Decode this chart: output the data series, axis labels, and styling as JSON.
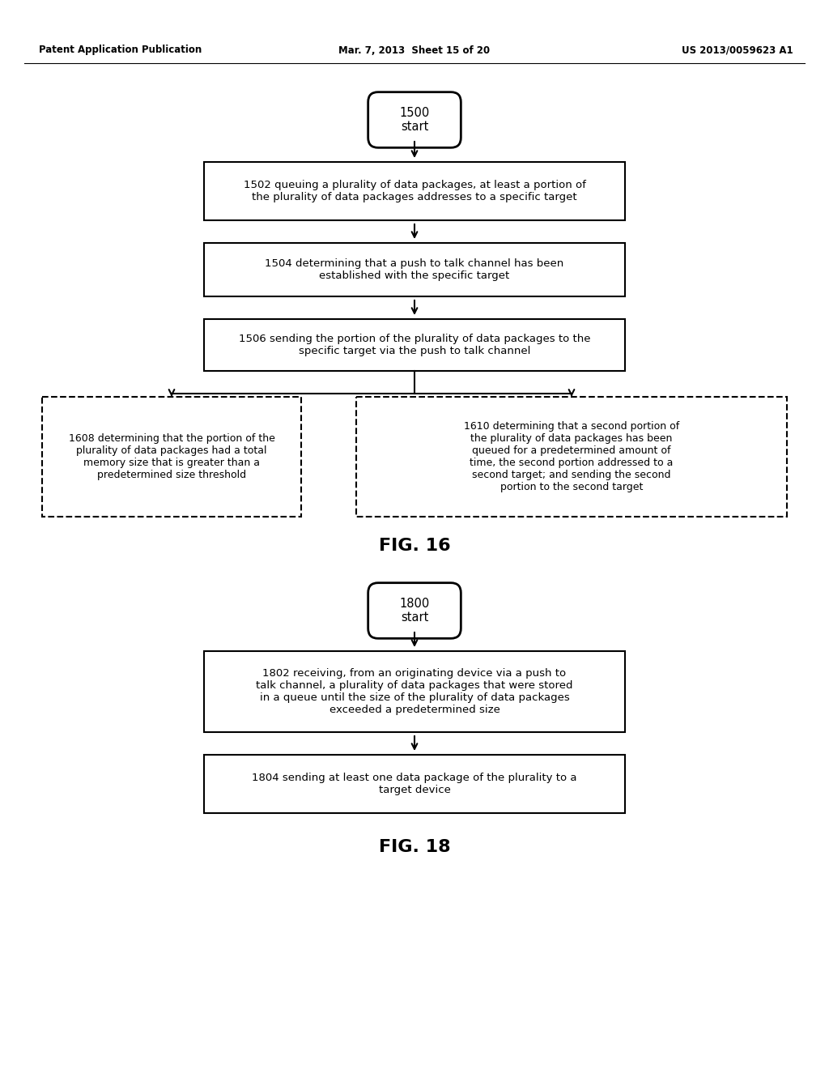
{
  "header_left": "Patent Application Publication",
  "header_mid": "Mar. 7, 2013  Sheet 15 of 20",
  "header_right": "US 2013/0059623 A1",
  "fig16_label": "FIG. 16",
  "fig18_label": "FIG. 18",
  "start1_label": "1500\nstart",
  "start2_label": "1800\nstart",
  "box1502_text": "1502 queuing a plurality of data packages, at least a portion of\nthe plurality of data packages addresses to a specific target",
  "box1504_text": "1504 determining that a push to talk channel has been\nestablished with the specific target",
  "box1506_text": "1506 sending the portion of the plurality of data packages to the\nspecific target via the push to talk channel",
  "box1608_text": "1608 determining that the portion of the\nplurality of data packages had a total\nmemory size that is greater than a\npredetermined size threshold",
  "box1610_text": "1610 determining that a second portion of\nthe plurality of data packages has been\nqueued for a predetermined amount of\ntime, the second portion addressed to a\nsecond target; and sending the second\nportion to the second target",
  "box1802_text": "1802 receiving, from an originating device via a push to\ntalk channel, a plurality of data packages that were stored\nin a queue until the size of the plurality of data packages\nexceeded a predetermined size",
  "box1804_text": "1804 sending at least one data package of the plurality to a\ntarget device",
  "bg_color": "#ffffff",
  "text_color": "#000000",
  "box_edge_color": "#000000"
}
